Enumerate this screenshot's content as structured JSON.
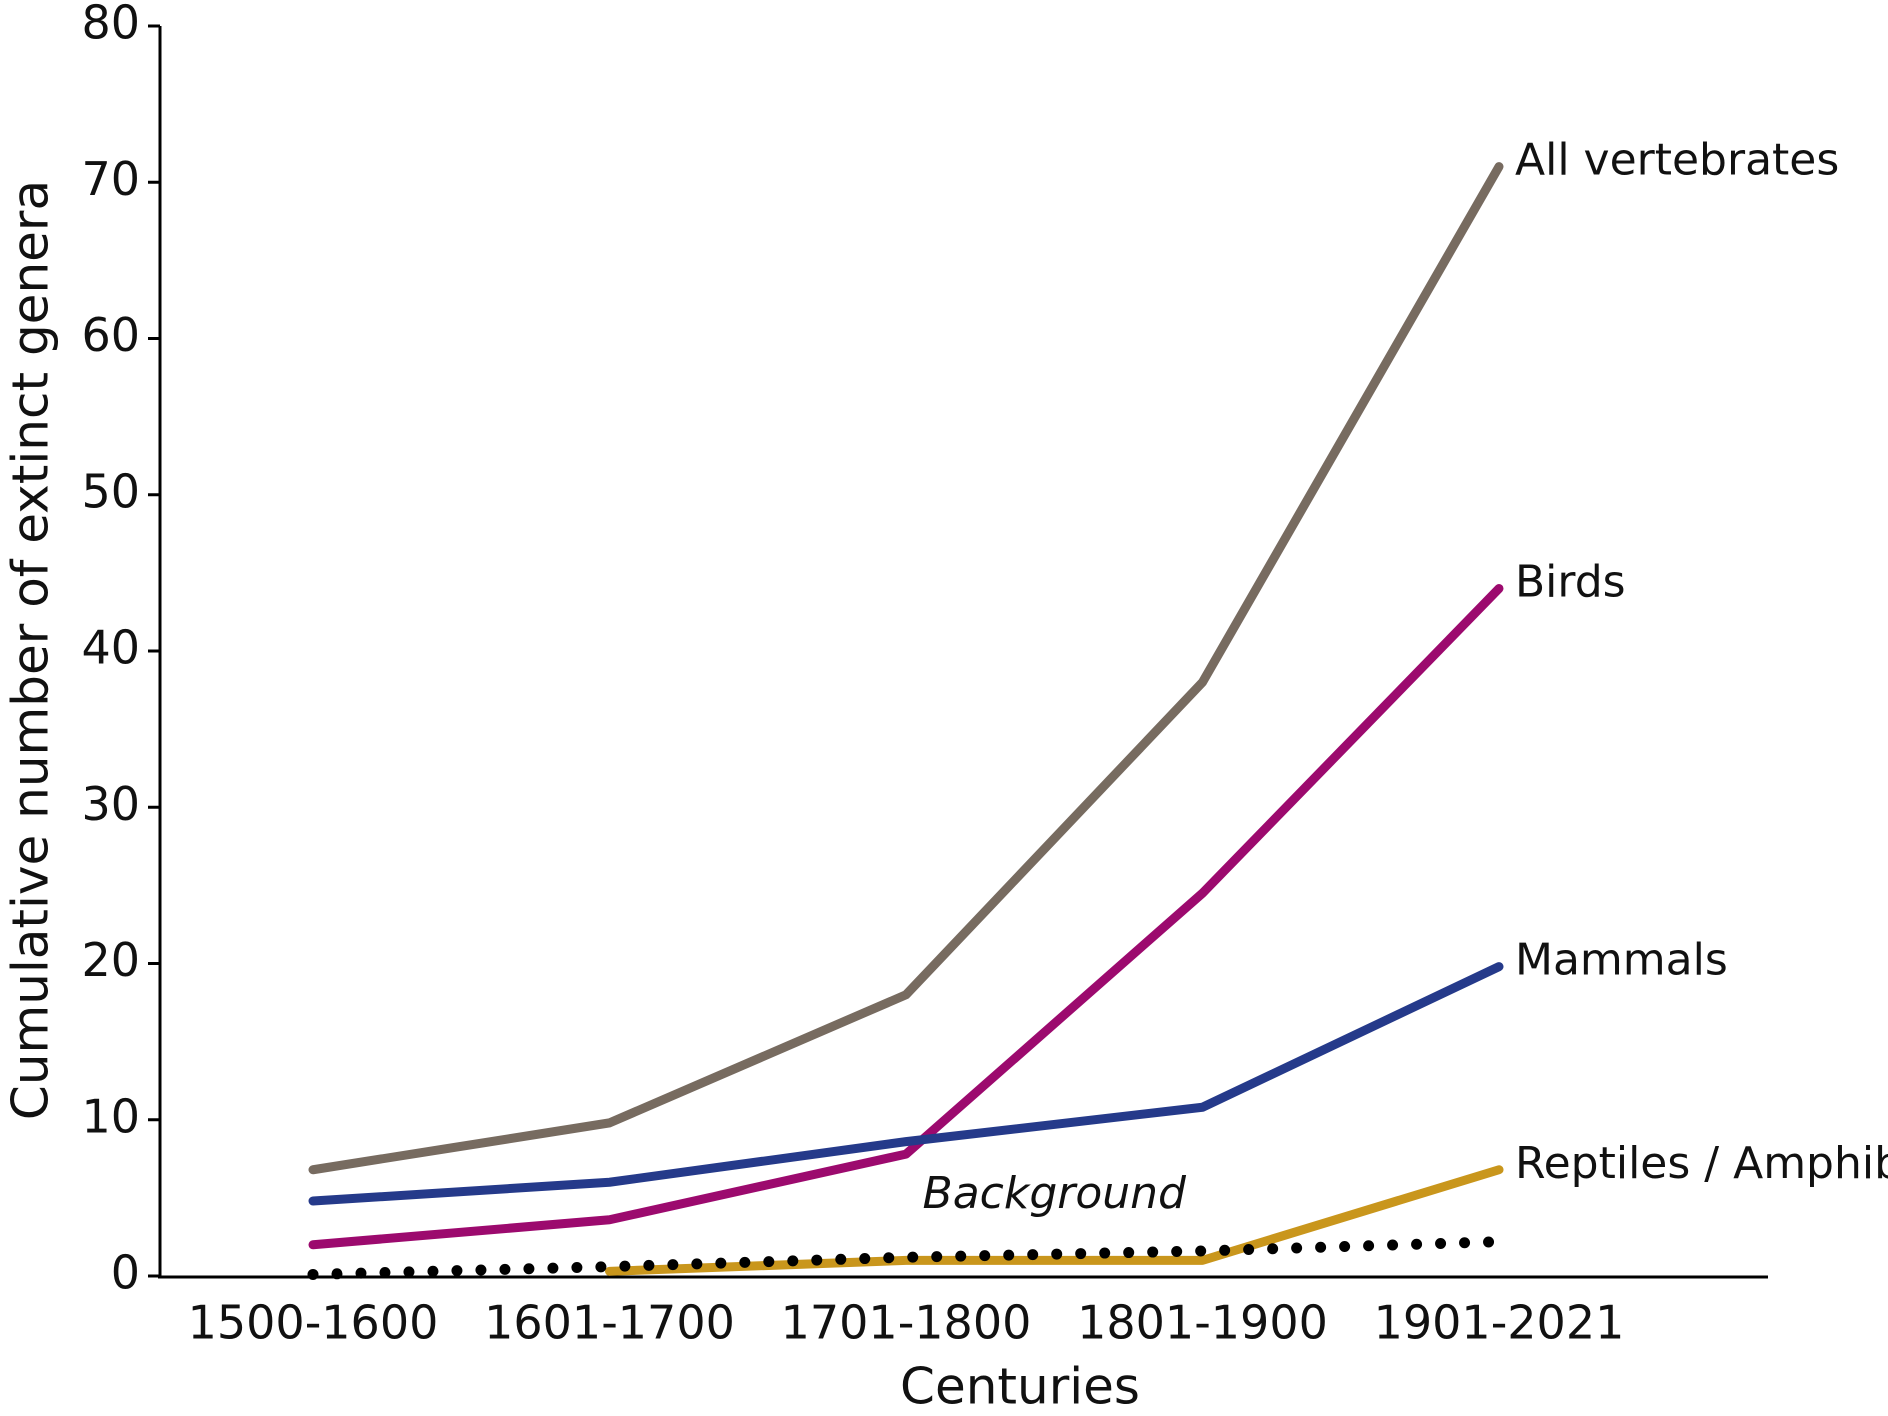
{
  "chart_data": {
    "type": "line",
    "x_label": "Centuries",
    "y_label": "Cumulative number of extinct genera",
    "categories": [
      "1500-1600",
      "1601-1700",
      "1701-1800",
      "1801-1900",
      "1901-2021"
    ],
    "series": [
      {
        "name": "All vertebrates",
        "color": "#776b60",
        "dash": "solid",
        "values": [
          6.8,
          9.8,
          18,
          38,
          71
        ]
      },
      {
        "name": "Birds",
        "color": "#9c0a6e",
        "dash": "solid",
        "values": [
          2,
          3.6,
          7.8,
          24.5,
          44
        ]
      },
      {
        "name": "Mammals",
        "color": "#253a8a",
        "dash": "solid",
        "values": [
          4.8,
          6,
          8.6,
          10.8,
          19.8
        ]
      },
      {
        "name": "Reptiles / Amphibia",
        "color": "#c9961c",
        "dash": "solid",
        "values": [
          null,
          0.3,
          1,
          1,
          6.8
        ]
      },
      {
        "name": "Background",
        "color": "#000000",
        "dash": "dotted",
        "values": [
          0.1,
          0.6,
          1.2,
          1.6,
          2.2
        ]
      }
    ],
    "ylim": [
      0,
      80
    ],
    "yticks": [
      0,
      10,
      20,
      30,
      40,
      50,
      60,
      70,
      80
    ],
    "grid": false
  }
}
